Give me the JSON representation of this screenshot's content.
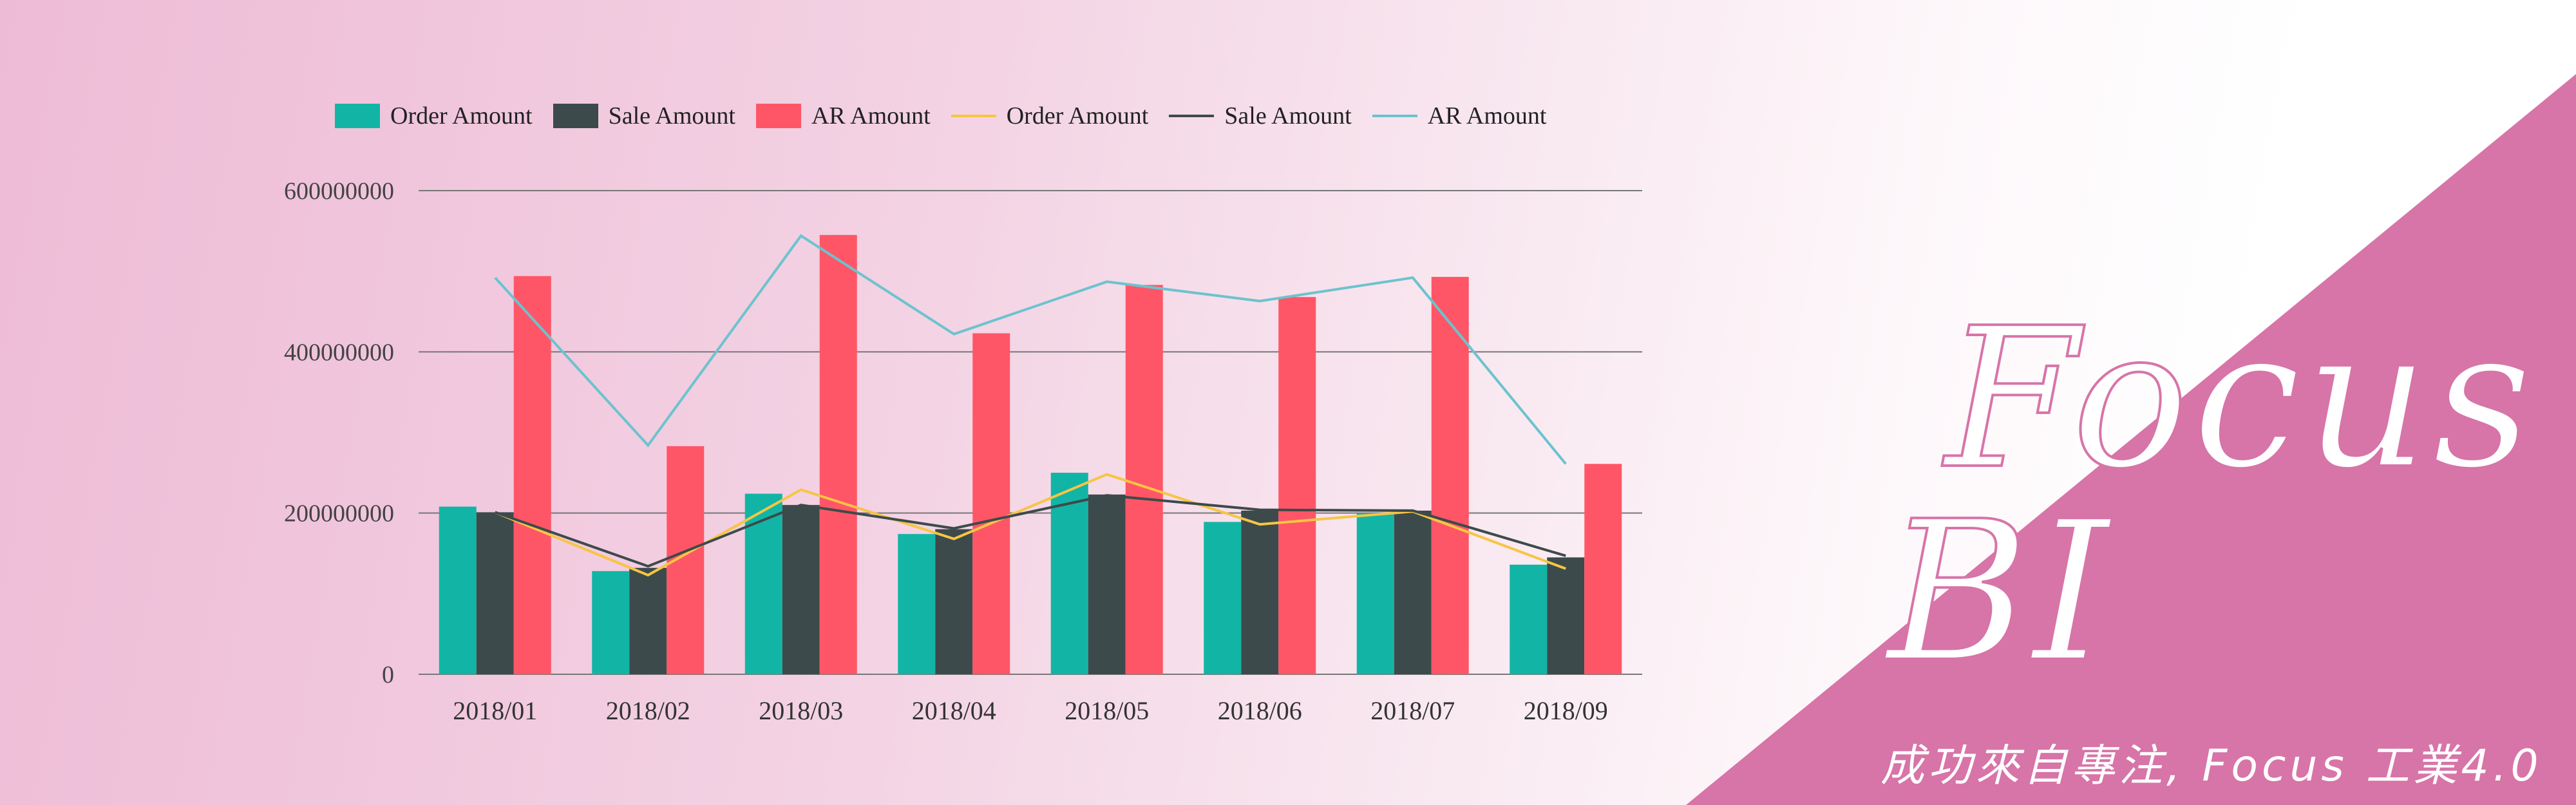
{
  "chart_data": {
    "type": "bar",
    "categories": [
      "2018/01",
      "2018/02",
      "2018/03",
      "2018/04",
      "2018/05",
      "2018/06",
      "2018/07",
      "2018/09"
    ],
    "series": [
      {
        "name": "Order Amount",
        "kind": "bar",
        "color": "#12b5a5",
        "values": [
          208000000,
          128000000,
          224000000,
          174000000,
          250000000,
          189000000,
          200000000,
          136000000
        ]
      },
      {
        "name": "Sale Amount",
        "kind": "bar",
        "color": "#3d4a4b",
        "values": [
          201000000,
          132000000,
          210000000,
          180000000,
          223000000,
          203000000,
          203000000,
          145000000
        ]
      },
      {
        "name": "AR Amount",
        "kind": "bar",
        "color": "#ff5667",
        "values": [
          494000000,
          283000000,
          545000000,
          423000000,
          483000000,
          468000000,
          493000000,
          261000000
        ]
      },
      {
        "name": "Order Amount",
        "kind": "line",
        "color": "#f6c544",
        "values": [
          201000000,
          123000000,
          229000000,
          168000000,
          248000000,
          186000000,
          202000000,
          131000000
        ]
      },
      {
        "name": "Sale Amount",
        "kind": "line",
        "color": "#3d4a4b",
        "values": [
          201000000,
          134000000,
          210000000,
          181000000,
          222000000,
          204000000,
          203000000,
          147000000
        ]
      },
      {
        "name": "AR Amount",
        "kind": "line",
        "color": "#6cc3ce",
        "values": [
          492000000,
          284000000,
          544000000,
          422000000,
          487000000,
          463000000,
          492000000,
          261000000
        ]
      }
    ],
    "yticks": [
      "0",
      "200000000",
      "400000000",
      "600000000"
    ],
    "ylim": [
      0,
      600000000
    ],
    "grid": true,
    "legend_position": "top-left"
  },
  "brand": {
    "line1": "Focus",
    "line2": "BI",
    "slogan": "成功來自專注, Focus 工業4.0",
    "accent": "#d774a8"
  }
}
